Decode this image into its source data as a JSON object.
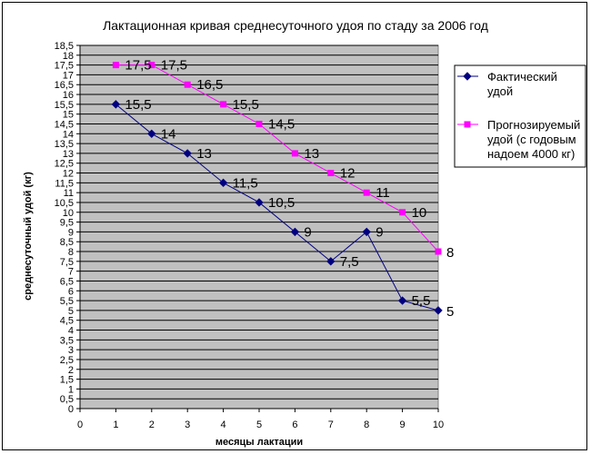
{
  "chart_data": {
    "type": "line",
    "title": "Лактационная кривая среднесуточного удоя по стаду за 2006 год",
    "xlabel": "месяцы лактации",
    "ylabel": "среднесуточный удой (кг)",
    "xlim": [
      0,
      10
    ],
    "ylim": [
      0,
      18.5
    ],
    "x_ticks": [
      "0",
      "1",
      "2",
      "3",
      "4",
      "5",
      "6",
      "7",
      "8",
      "9",
      "10"
    ],
    "y_ticks": [
      "0",
      "0,5",
      "1",
      "1,5",
      "2",
      "2,5",
      "3",
      "3,5",
      "4",
      "4,5",
      "5",
      "5,5",
      "6",
      "6,5",
      "7",
      "7,5",
      "8",
      "8,5",
      "9",
      "9,5",
      "10",
      "10,5",
      "11",
      "11,5",
      "12",
      "12,5",
      "13",
      "13,5",
      "14",
      "14,5",
      "15",
      "15,5",
      "16",
      "16,5",
      "17",
      "17,5",
      "18",
      "18,5"
    ],
    "grid": true,
    "legend_position": "right",
    "series": [
      {
        "name": "Фактический удой",
        "legend_lines": [
          "Фактический",
          "удой"
        ],
        "color": "#000080",
        "marker": "diamond",
        "x": [
          1,
          2,
          3,
          4,
          5,
          6,
          7,
          8,
          9,
          10
        ],
        "values": [
          15.5,
          14,
          13,
          11.5,
          10.5,
          9,
          7.5,
          9,
          5.5,
          5
        ],
        "labels": [
          "15,5",
          "14",
          "13",
          "11,5",
          "10,5",
          "9",
          "7,5",
          "9",
          "5,5",
          "5"
        ]
      },
      {
        "name": "Прогнозируемый удой (с годовым надоем 4000 кг)",
        "legend_lines": [
          "Прогнозируемый",
          "удой (с годовым",
          "надоем 4000 кг)"
        ],
        "color": "#ff00ff",
        "marker": "square",
        "x": [
          1,
          2,
          3,
          4,
          5,
          6,
          7,
          8,
          9,
          10
        ],
        "values": [
          17.5,
          17.5,
          16.5,
          15.5,
          14.5,
          13,
          12,
          11,
          10,
          8
        ],
        "labels": [
          "17,5",
          "17,5",
          "16,5",
          "15,5",
          "14,5",
          "13",
          "12",
          "11",
          "10",
          "8"
        ]
      }
    ]
  }
}
